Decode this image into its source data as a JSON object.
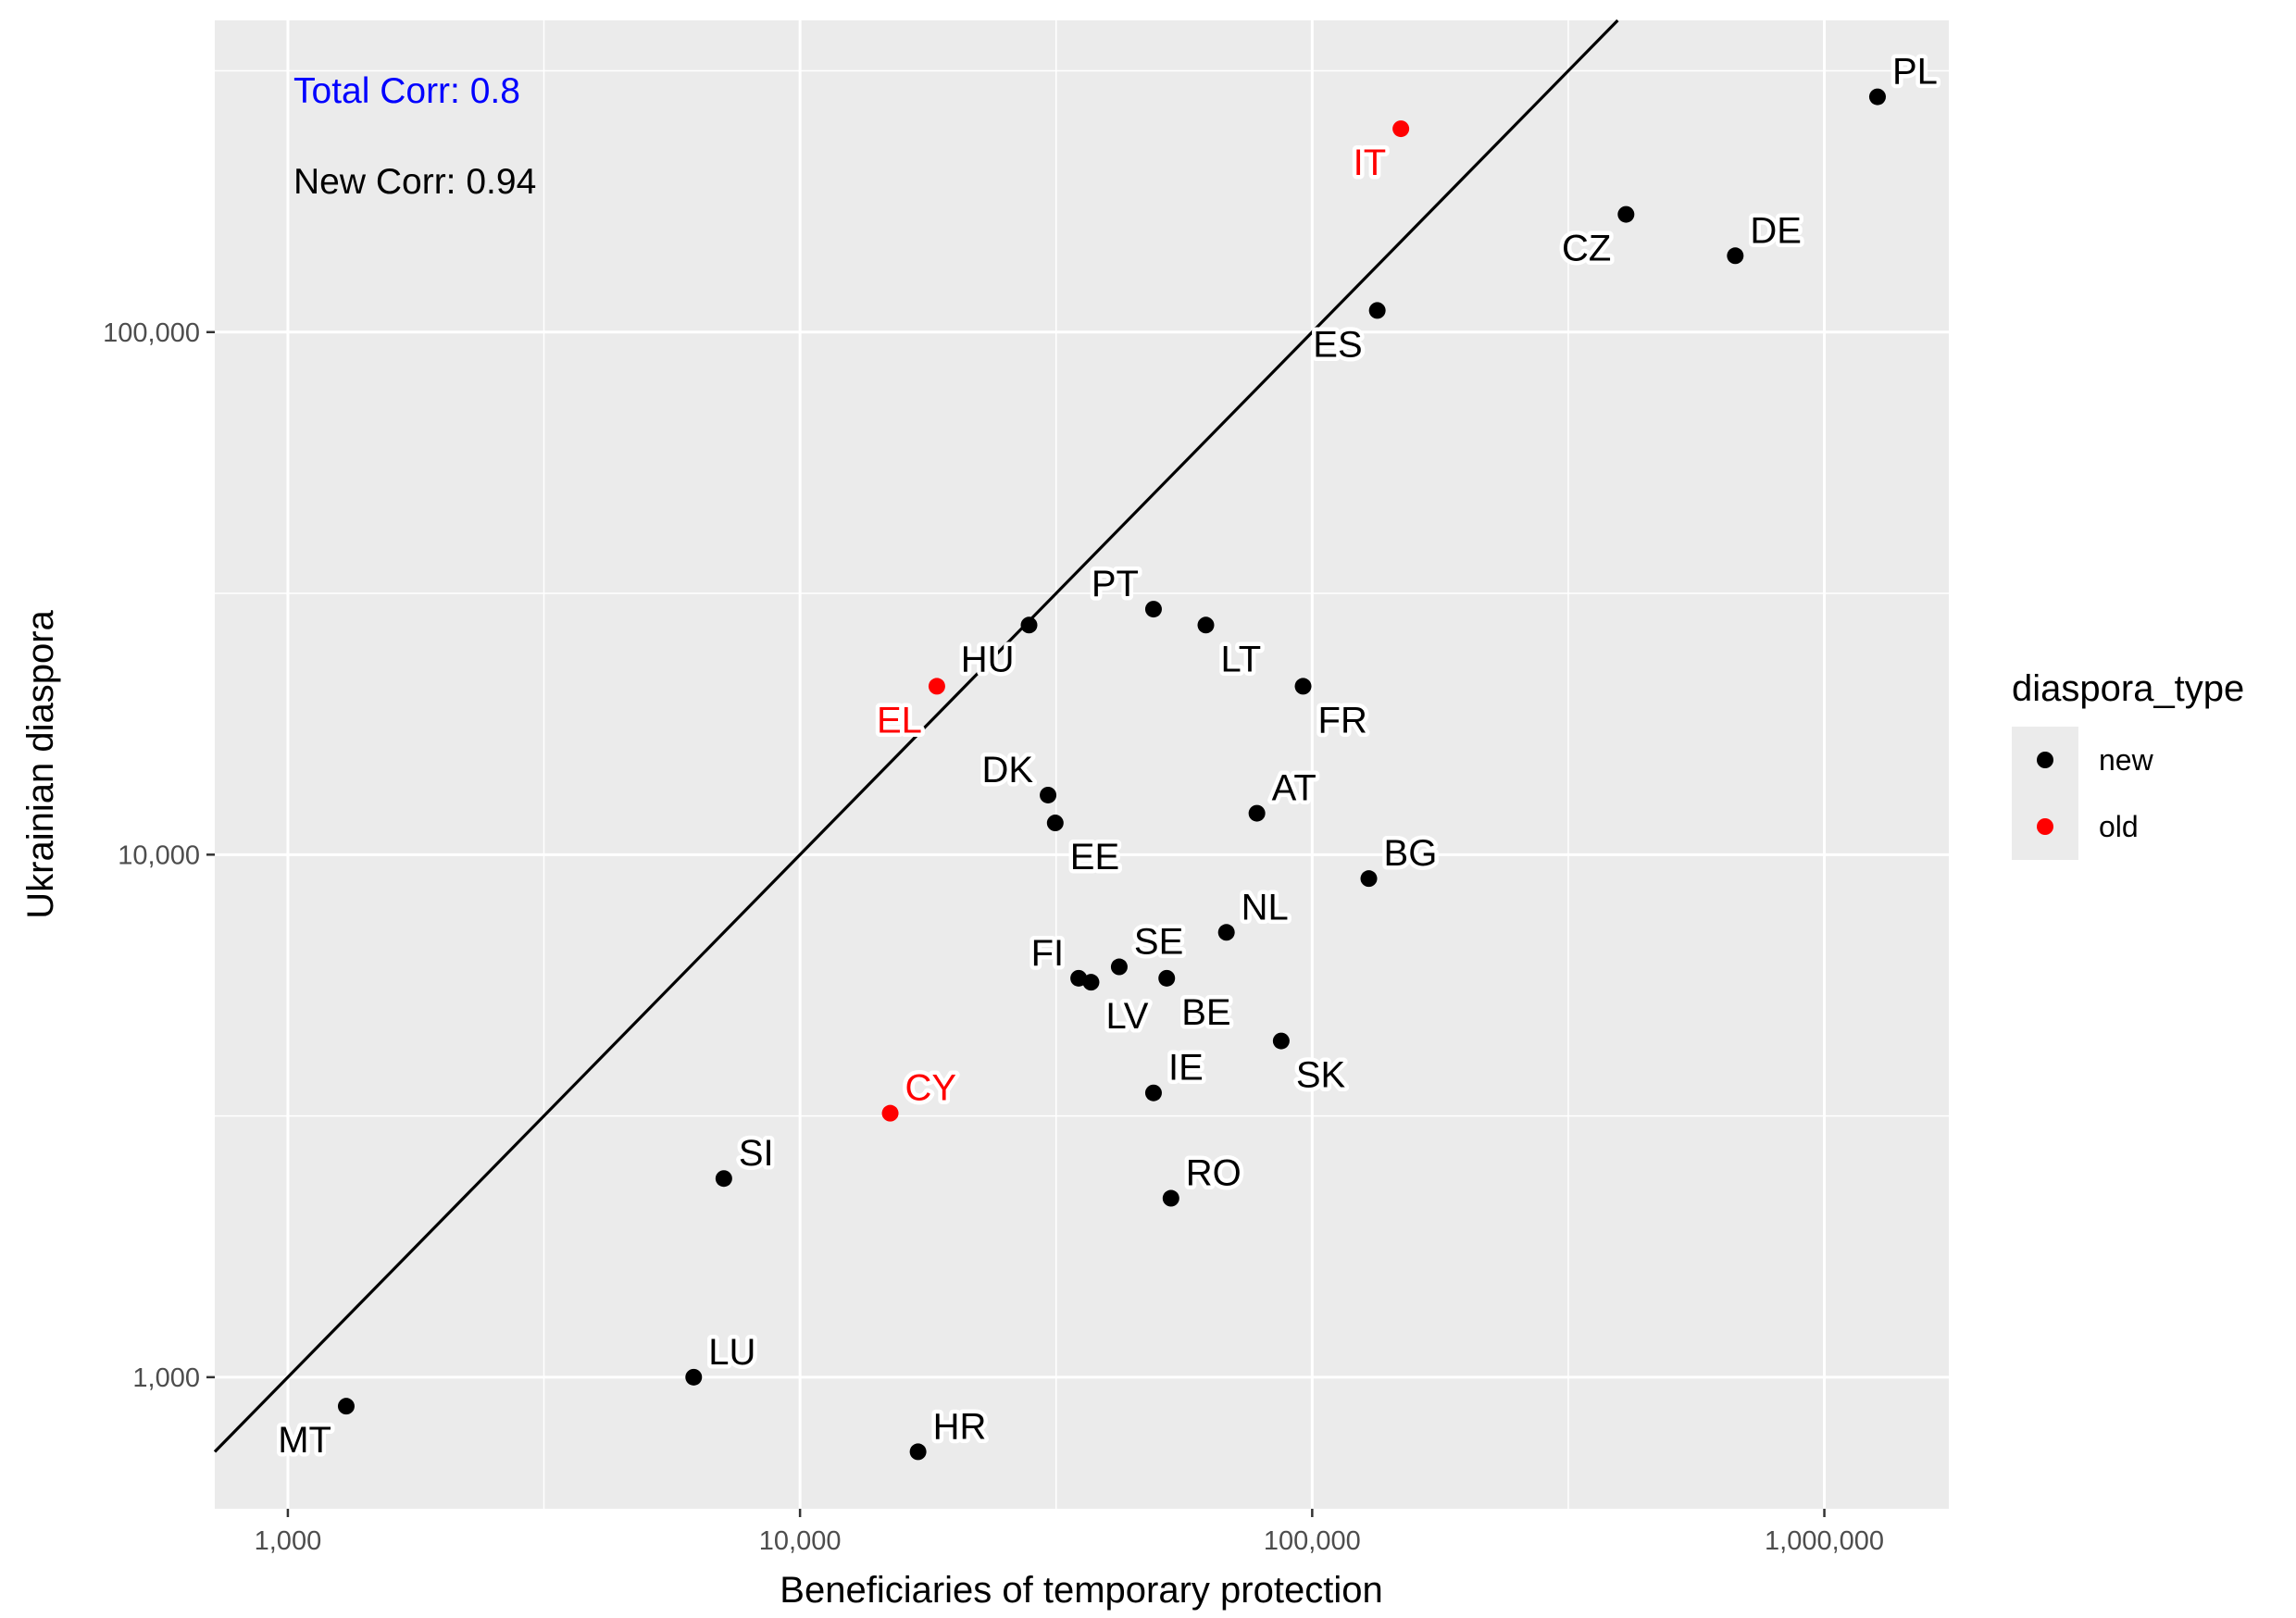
{
  "chart_data": {
    "type": "scatter",
    "x_scale": "log10",
    "y_scale": "log10",
    "xlabel": "Beneficiaries of temporary protection",
    "ylabel": "Ukrainian diaspora",
    "xlim": [
      720,
      1750000
    ],
    "ylim": [
      560,
      395000
    ],
    "x_ticks": [
      {
        "value": 1000,
        "label": "1,000"
      },
      {
        "value": 10000,
        "label": "10,000"
      },
      {
        "value": 100000,
        "label": "100,000"
      },
      {
        "value": 1000000,
        "label": "1,000,000"
      }
    ],
    "y_ticks": [
      {
        "value": 1000,
        "label": "1,000"
      },
      {
        "value": 10000,
        "label": "10,000"
      },
      {
        "value": 100000,
        "label": "100,000"
      }
    ],
    "reference_line": {
      "type": "identity",
      "description": "y = x"
    },
    "annotations": [
      {
        "text": "Total Corr: 0.8",
        "color": "#0000ff"
      },
      {
        "text": "New Corr: 0.94",
        "color": "#000000"
      }
    ],
    "colors": {
      "new": "#000000",
      "old": "#ff0000"
    },
    "legend": {
      "title": "diaspora_type",
      "position": "right",
      "entries": [
        {
          "key": "new",
          "label": "new",
          "color": "#000000"
        },
        {
          "key": "old",
          "label": "old",
          "color": "#ff0000"
        }
      ]
    },
    "points": [
      {
        "label": "PL",
        "x": 1270000,
        "y": 282000,
        "type": "new",
        "anchor": "right-above"
      },
      {
        "label": "IT",
        "x": 149000,
        "y": 245000,
        "type": "old",
        "anchor": "left-below"
      },
      {
        "label": "CZ",
        "x": 410000,
        "y": 168000,
        "type": "new",
        "anchor": "left-below"
      },
      {
        "label": "DE",
        "x": 670000,
        "y": 140000,
        "type": "new",
        "anchor": "right-above"
      },
      {
        "label": "ES",
        "x": 134000,
        "y": 110000,
        "type": "new",
        "anchor": "left-below"
      },
      {
        "label": "PT",
        "x": 49000,
        "y": 29500,
        "type": "new",
        "anchor": "left-above"
      },
      {
        "label": "HU",
        "x": 28000,
        "y": 27500,
        "type": "new",
        "anchor": "left-below"
      },
      {
        "label": "LT",
        "x": 62000,
        "y": 27500,
        "type": "new",
        "anchor": "right-below"
      },
      {
        "label": "EL",
        "x": 18500,
        "y": 21000,
        "type": "old",
        "anchor": "left-below"
      },
      {
        "label": "FR",
        "x": 96000,
        "y": 21000,
        "type": "new",
        "anchor": "right-below"
      },
      {
        "label": "DK",
        "x": 30500,
        "y": 13000,
        "type": "new",
        "anchor": "left-above"
      },
      {
        "label": "AT",
        "x": 78000,
        "y": 12000,
        "type": "new",
        "anchor": "right-above"
      },
      {
        "label": "EE",
        "x": 31500,
        "y": 11500,
        "type": "new",
        "anchor": "right-below"
      },
      {
        "label": "BG",
        "x": 129000,
        "y": 9000,
        "type": "new",
        "anchor": "right-above"
      },
      {
        "label": "NL",
        "x": 68000,
        "y": 7100,
        "type": "new",
        "anchor": "right-above"
      },
      {
        "label": "SE",
        "x": 42000,
        "y": 6100,
        "type": "new",
        "anchor": "right-above"
      },
      {
        "label": "FI",
        "x": 35000,
        "y": 5800,
        "type": "new",
        "anchor": "left-above"
      },
      {
        "label": "LV",
        "x": 37000,
        "y": 5700,
        "type": "new",
        "anchor": "right-below"
      },
      {
        "label": "BE",
        "x": 52000,
        "y": 5800,
        "type": "new",
        "anchor": "right-below"
      },
      {
        "label": "SK",
        "x": 87000,
        "y": 4400,
        "type": "new",
        "anchor": "right-below"
      },
      {
        "label": "IE",
        "x": 49000,
        "y": 3500,
        "type": "new",
        "anchor": "right-above"
      },
      {
        "label": "CY",
        "x": 15000,
        "y": 3200,
        "type": "old",
        "anchor": "right-above"
      },
      {
        "label": "SI",
        "x": 7100,
        "y": 2400,
        "type": "new",
        "anchor": "right-above"
      },
      {
        "label": "RO",
        "x": 53000,
        "y": 2200,
        "type": "new",
        "anchor": "right-above"
      },
      {
        "label": "LU",
        "x": 6200,
        "y": 1000,
        "type": "new",
        "anchor": "right-above"
      },
      {
        "label": "MT",
        "x": 1300,
        "y": 880,
        "type": "new",
        "anchor": "left-below"
      },
      {
        "label": "HR",
        "x": 17000,
        "y": 720,
        "type": "new",
        "anchor": "right-above"
      }
    ]
  }
}
